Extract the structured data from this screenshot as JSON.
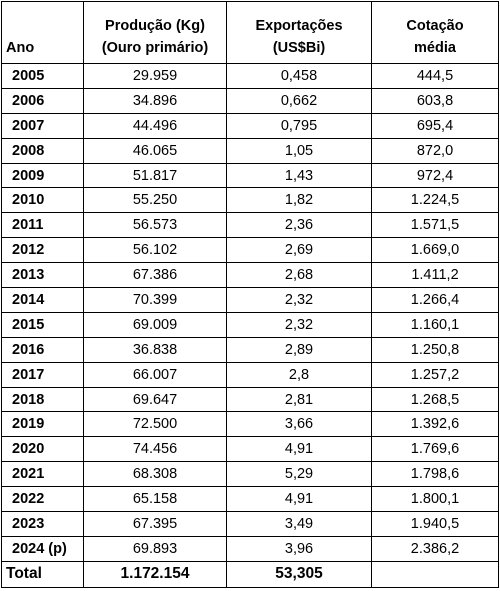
{
  "header": {
    "col0": "Ano",
    "col1_line1": "Produção (Kg)",
    "col1_line2": "(Ouro primário)",
    "col2_line1": "Exportações",
    "col2_line2": "(US$Bi)",
    "col3_line1": "Cotação",
    "col3_line2": "média"
  },
  "rows": [
    {
      "ano": "2005",
      "producao": "29.959",
      "exportacoes": "0,458",
      "cotacao": "444,5"
    },
    {
      "ano": "2006",
      "producao": "34.896",
      "exportacoes": "0,662",
      "cotacao": "603,8"
    },
    {
      "ano": "2007",
      "producao": "44.496",
      "exportacoes": "0,795",
      "cotacao": "695,4"
    },
    {
      "ano": "2008",
      "producao": "46.065",
      "exportacoes": "1,05",
      "cotacao": "872,0"
    },
    {
      "ano": "2009",
      "producao": "51.817",
      "exportacoes": "1,43",
      "cotacao": "972,4"
    },
    {
      "ano": "2010",
      "producao": "55.250",
      "exportacoes": "1,82",
      "cotacao": "1.224,5"
    },
    {
      "ano": "2011",
      "producao": "56.573",
      "exportacoes": "2,36",
      "cotacao": "1.571,5"
    },
    {
      "ano": "2012",
      "producao": "56.102",
      "exportacoes": "2,69",
      "cotacao": "1.669,0"
    },
    {
      "ano": "2013",
      "producao": "67.386",
      "exportacoes": "2,68",
      "cotacao": "1.411,2"
    },
    {
      "ano": "2014",
      "producao": "70.399",
      "exportacoes": "2,32",
      "cotacao": "1.266,4"
    },
    {
      "ano": "2015",
      "producao": "69.009",
      "exportacoes": "2,32",
      "cotacao": "1.160,1"
    },
    {
      "ano": "2016",
      "producao": "36.838",
      "exportacoes": "2,89",
      "cotacao": "1.250,8"
    },
    {
      "ano": "2017",
      "producao": "66.007",
      "exportacoes": "2,8",
      "cotacao": "1.257,2"
    },
    {
      "ano": "2018",
      "producao": "69.647",
      "exportacoes": "2,81",
      "cotacao": "1.268,5"
    },
    {
      "ano": "2019",
      "producao": "72.500",
      "exportacoes": "3,66",
      "cotacao": "1.392,6"
    },
    {
      "ano": "2020",
      "producao": "74.456",
      "exportacoes": "4,91",
      "cotacao": "1.769,6"
    },
    {
      "ano": "2021",
      "producao": "68.308",
      "exportacoes": "5,29",
      "cotacao": "1.798,6"
    },
    {
      "ano": "2022",
      "producao": "65.158",
      "exportacoes": "4,91",
      "cotacao": "1.800,1"
    },
    {
      "ano": "2023",
      "producao": "67.395",
      "exportacoes": "3,49",
      "cotacao": "1.940,5"
    },
    {
      "ano": "2024 (p)",
      "producao": "69.893",
      "exportacoes": "3,96",
      "cotacao": "2.386,2"
    }
  ],
  "total": {
    "label": "Total",
    "producao": "1.172.154",
    "exportacoes": "53,305",
    "cotacao": ""
  }
}
